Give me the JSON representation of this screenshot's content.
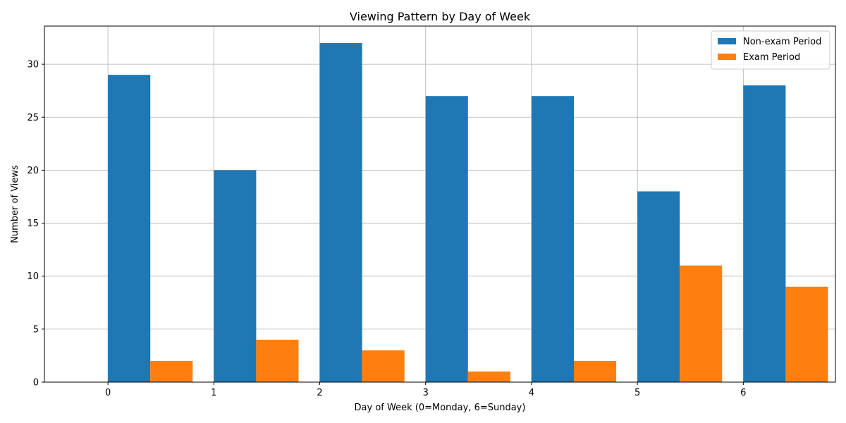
{
  "chart_data": {
    "type": "bar",
    "title": "Viewing Pattern by Day of Week",
    "xlabel": "Day of Week (0=Monday, 6=Sunday)",
    "ylabel": "Number of Views",
    "categories": [
      "0",
      "1",
      "2",
      "3",
      "4",
      "5",
      "6"
    ],
    "series": [
      {
        "name": "Non-exam Period",
        "color": "#1f77b4",
        "values": [
          29,
          20,
          32,
          27,
          27,
          18,
          28
        ]
      },
      {
        "name": "Exam Period",
        "color": "#ff7f0e",
        "values": [
          2,
          4,
          3,
          1,
          2,
          11,
          9
        ]
      }
    ],
    "ylim": [
      0,
      33.6
    ],
    "yticks": [
      0,
      5,
      10,
      15,
      20,
      25,
      30
    ],
    "grid": true,
    "legend_position": "top-right"
  }
}
